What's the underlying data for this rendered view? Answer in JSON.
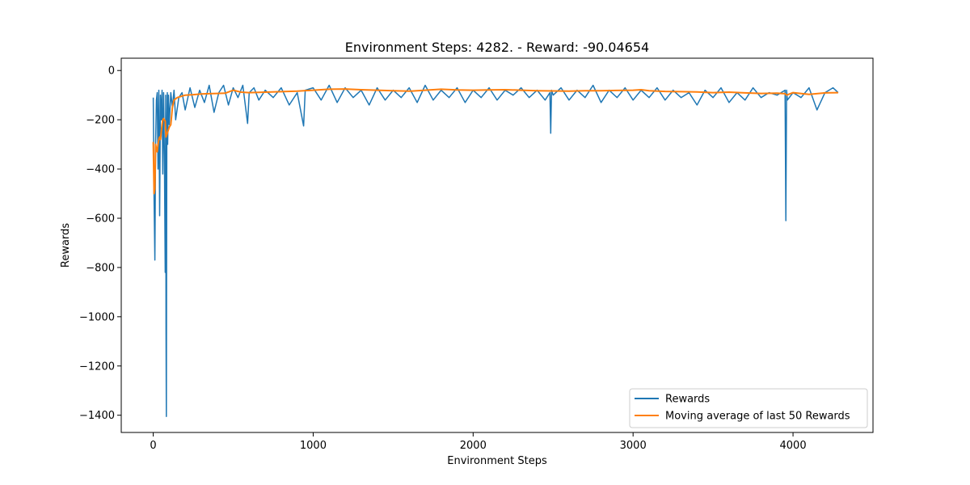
{
  "chart_data": {
    "type": "line",
    "title": "Environment Steps: 4282. - Reward: -90.04654",
    "xlabel": "Environment Steps",
    "ylabel": "Rewards",
    "xlim": [
      -200,
      4500
    ],
    "ylim": [
      -1470,
      50
    ],
    "xticks": [
      0,
      1000,
      2000,
      3000,
      4000
    ],
    "xtick_labels": [
      "0",
      "1000",
      "2000",
      "3000",
      "4000"
    ],
    "yticks": [
      0,
      -200,
      -400,
      -600,
      -800,
      -1000,
      -1200,
      -1400
    ],
    "ytick_labels": [
      "0",
      "−200",
      "−400",
      "−600",
      "−800",
      "−1000",
      "−1200",
      "−1400"
    ],
    "grid": false,
    "legend_position": "lower-right",
    "series": [
      {
        "name": "Rewards",
        "color": "#1f77b4",
        "x": [
          0,
          5,
          10,
          15,
          20,
          25,
          30,
          35,
          40,
          45,
          50,
          55,
          60,
          65,
          70,
          75,
          78,
          80,
          82,
          85,
          88,
          90,
          95,
          100,
          110,
          120,
          130,
          140,
          160,
          180,
          200,
          230,
          260,
          290,
          320,
          350,
          380,
          410,
          440,
          470,
          500,
          530,
          560,
          590,
          600,
          630,
          660,
          700,
          750,
          800,
          850,
          900,
          940,
          950,
          1000,
          1050,
          1100,
          1150,
          1200,
          1250,
          1300,
          1350,
          1400,
          1450,
          1500,
          1550,
          1600,
          1650,
          1700,
          1750,
          1800,
          1850,
          1900,
          1950,
          2000,
          2050,
          2100,
          2150,
          2200,
          2250,
          2300,
          2350,
          2400,
          2450,
          2480,
          2485,
          2490,
          2500,
          2550,
          2600,
          2650,
          2700,
          2750,
          2800,
          2850,
          2900,
          2950,
          3000,
          3050,
          3100,
          3150,
          3200,
          3250,
          3300,
          3350,
          3400,
          3450,
          3500,
          3550,
          3600,
          3650,
          3700,
          3750,
          3800,
          3850,
          3900,
          3950,
          3955,
          3960,
          3965,
          4000,
          4050,
          4100,
          4150,
          4200,
          4250,
          4282
        ],
        "y": [
          -110,
          -520,
          -770,
          -300,
          -120,
          -90,
          -400,
          -80,
          -590,
          -100,
          -200,
          -80,
          -420,
          -90,
          -350,
          -820,
          -100,
          -1050,
          -1405,
          -230,
          -90,
          -300,
          -100,
          -220,
          -90,
          -150,
          -80,
          -200,
          -110,
          -90,
          -160,
          -70,
          -150,
          -80,
          -130,
          -60,
          -170,
          -90,
          -60,
          -140,
          -70,
          -110,
          -60,
          -215,
          -90,
          -70,
          -120,
          -80,
          -110,
          -70,
          -140,
          -90,
          -225,
          -80,
          -70,
          -120,
          -60,
          -130,
          -70,
          -110,
          -80,
          -140,
          -70,
          -120,
          -80,
          -110,
          -70,
          -130,
          -60,
          -120,
          -80,
          -110,
          -70,
          -130,
          -80,
          -110,
          -70,
          -120,
          -80,
          -100,
          -70,
          -110,
          -80,
          -120,
          -90,
          -255,
          -80,
          -100,
          -70,
          -120,
          -80,
          -110,
          -60,
          -130,
          -80,
          -110,
          -70,
          -120,
          -80,
          -110,
          -70,
          -120,
          -80,
          -110,
          -90,
          -140,
          -80,
          -110,
          -70,
          -130,
          -90,
          -120,
          -70,
          -110,
          -90,
          -100,
          -80,
          -610,
          -80,
          -120,
          -90,
          -110,
          -70,
          -160,
          -90,
          -70,
          -90
        ]
      },
      {
        "name": "Moving average of last 50 Rewards",
        "color": "#ff7f0e",
        "x": [
          0,
          5,
          10,
          15,
          20,
          25,
          30,
          35,
          40,
          45,
          50,
          55,
          60,
          65,
          70,
          75,
          80,
          85,
          90,
          100,
          110,
          120,
          130,
          150,
          200,
          250,
          300,
          400,
          450,
          500,
          550,
          600,
          700,
          800,
          900,
          1000,
          1100,
          1200,
          1300,
          1400,
          1500,
          1600,
          1700,
          1800,
          1900,
          2000,
          2100,
          2200,
          2300,
          2400,
          2500,
          2600,
          2700,
          2800,
          2900,
          3000,
          3050,
          3100,
          3200,
          3300,
          3400,
          3500,
          3600,
          3700,
          3800,
          3900,
          3950,
          3960,
          4000,
          4100,
          4200,
          4282
        ],
        "y": [
          -290,
          -500,
          -480,
          -300,
          -320,
          -330,
          -300,
          -280,
          -270,
          -280,
          -250,
          -220,
          -200,
          -195,
          -200,
          -205,
          -270,
          -260,
          -250,
          -230,
          -220,
          -150,
          -120,
          -110,
          -100,
          -98,
          -95,
          -93,
          -92,
          -80,
          -88,
          -90,
          -88,
          -86,
          -84,
          -80,
          -76,
          -75,
          -78,
          -80,
          -82,
          -84,
          -80,
          -76,
          -79,
          -80,
          -79,
          -78,
          -80,
          -82,
          -83,
          -84,
          -82,
          -82,
          -81,
          -80,
          -78,
          -82,
          -85,
          -86,
          -87,
          -90,
          -88,
          -91,
          -93,
          -92,
          -94,
          -100,
          -90,
          -97,
          -91,
          -90
        ]
      }
    ]
  }
}
